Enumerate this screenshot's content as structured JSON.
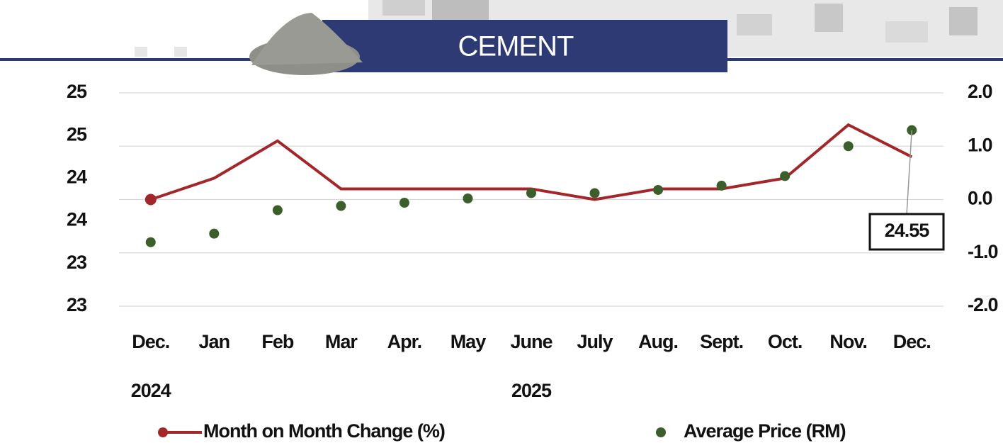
{
  "header": {
    "title": "CEMENT"
  },
  "chart_data": {
    "type": "line",
    "categories": [
      "Dec.",
      "Jan",
      "Feb",
      "Mar",
      "Apr.",
      "May",
      "June",
      "July",
      "Aug.",
      "Sept.",
      "Oct.",
      "Nov.",
      "Dec."
    ],
    "x_groups": [
      {
        "label": "2024",
        "index": 0
      },
      {
        "label": "2025",
        "index": 6
      }
    ],
    "series": [
      {
        "name": "Month on Month Change (%)",
        "color": "#a3262a",
        "axis": "y2",
        "marker_first_only": true,
        "values": [
          0.0,
          0.4,
          1.1,
          0.2,
          0.2,
          0.2,
          0.2,
          0.0,
          0.2,
          0.2,
          0.4,
          1.4,
          0.8
        ]
      },
      {
        "name": "Average Price (RM)",
        "color": "#3b5e2b",
        "axis": "y",
        "markers_only": true,
        "values": [
          23.5,
          23.58,
          23.8,
          23.84,
          23.87,
          23.91,
          23.96,
          23.96,
          23.99,
          24.03,
          24.12,
          24.4,
          24.55
        ],
        "value_labels": [
          null,
          null,
          null,
          null,
          null,
          null,
          null,
          null,
          null,
          null,
          null,
          null,
          "24.55"
        ]
      }
    ],
    "ylim": [
      22.9,
      24.9
    ],
    "yticks": [
      {
        "value": 22.9,
        "label": "23"
      },
      {
        "value": 23.3,
        "label": "23"
      },
      {
        "value": 23.7,
        "label": "24"
      },
      {
        "value": 24.1,
        "label": "24"
      },
      {
        "value": 24.5,
        "label": "25"
      },
      {
        "value": 24.9,
        "label": "25"
      }
    ],
    "y2lim": [
      -2,
      2
    ],
    "y2ticks": [
      {
        "value": -2,
        "label": "-2.0"
      },
      {
        "value": -1,
        "label": "-1.0"
      },
      {
        "value": 0,
        "label": "0.0"
      },
      {
        "value": 1,
        "label": "1.0"
      },
      {
        "value": 2,
        "label": "2.0"
      }
    ],
    "grid": true
  }
}
